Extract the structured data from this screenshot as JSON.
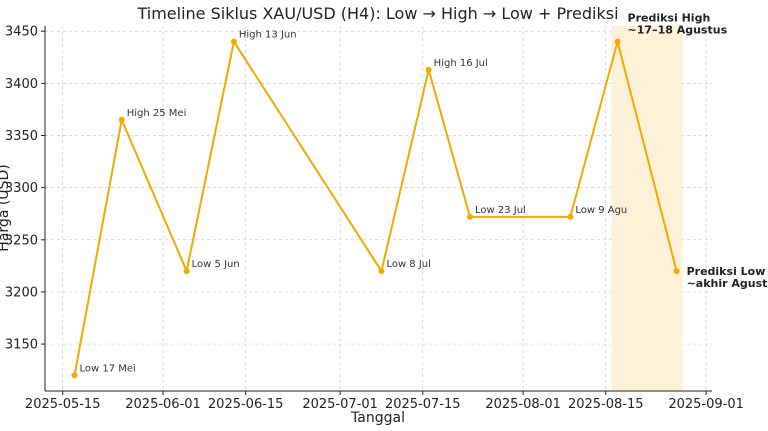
{
  "chart_data": {
    "type": "line",
    "title": "Timeline Siklus XAU/USD (H4): Low → High → Low + Prediksi",
    "xlabel": "Tanggal",
    "ylabel": "Harga (USD)",
    "x_axis_type": "date",
    "xlim": [
      "2025-05-12",
      "2025-09-02"
    ],
    "ylim": [
      3105,
      3455
    ],
    "grid": true,
    "line_color": "#f7a800",
    "shade_color": "#fdf1d8",
    "x_ticks": [
      {
        "value": "2025-05-15",
        "label": "2025-05-15"
      },
      {
        "value": "2025-06-01",
        "label": "2025-06-01"
      },
      {
        "value": "2025-06-15",
        "label": "2025-06-15"
      },
      {
        "value": "2025-07-01",
        "label": "2025-07-01"
      },
      {
        "value": "2025-07-15",
        "label": "2025-07-15"
      },
      {
        "value": "2025-08-01",
        "label": "2025-08-01"
      },
      {
        "value": "2025-08-15",
        "label": "2025-08-15"
      },
      {
        "value": "2025-09-01",
        "label": "2025-09-01"
      }
    ],
    "y_ticks": [
      3150,
      3200,
      3250,
      3300,
      3350,
      3400,
      3450
    ],
    "series": [
      {
        "points": [
          {
            "x": "2025-05-17",
            "y": 3120,
            "label": "Low 17 Mei"
          },
          {
            "x": "2025-05-25",
            "y": 3365,
            "label": "High 25 Mei"
          },
          {
            "x": "2025-06-05",
            "y": 3220,
            "label": "Low 5 Jun"
          },
          {
            "x": "2025-06-13",
            "y": 3440,
            "label": "High 13 Jun"
          },
          {
            "x": "2025-07-08",
            "y": 3220,
            "label": "Low 8 Jul"
          },
          {
            "x": "2025-07-16",
            "y": 3413,
            "label": "High 16 Jul"
          },
          {
            "x": "2025-07-23",
            "y": 3272,
            "label": "Low 23 Jul"
          },
          {
            "x": "2025-08-09",
            "y": 3272,
            "label": "Low 9 Agu"
          },
          {
            "x": "2025-08-17",
            "y": 3440,
            "label": ""
          },
          {
            "x": "2025-08-27",
            "y": 3220,
            "label": ""
          }
        ]
      }
    ],
    "shaded_region": {
      "x_start": "2025-08-16",
      "x_end": "2025-08-28"
    },
    "annotations": [
      {
        "x": "2025-08-17",
        "y": 3440,
        "lines": [
          "Prediksi High",
          "~17–18 Agustus"
        ]
      },
      {
        "x": "2025-08-27",
        "y": 3220,
        "lines": [
          "Prediksi Low",
          "~akhir Agustus"
        ]
      }
    ]
  }
}
